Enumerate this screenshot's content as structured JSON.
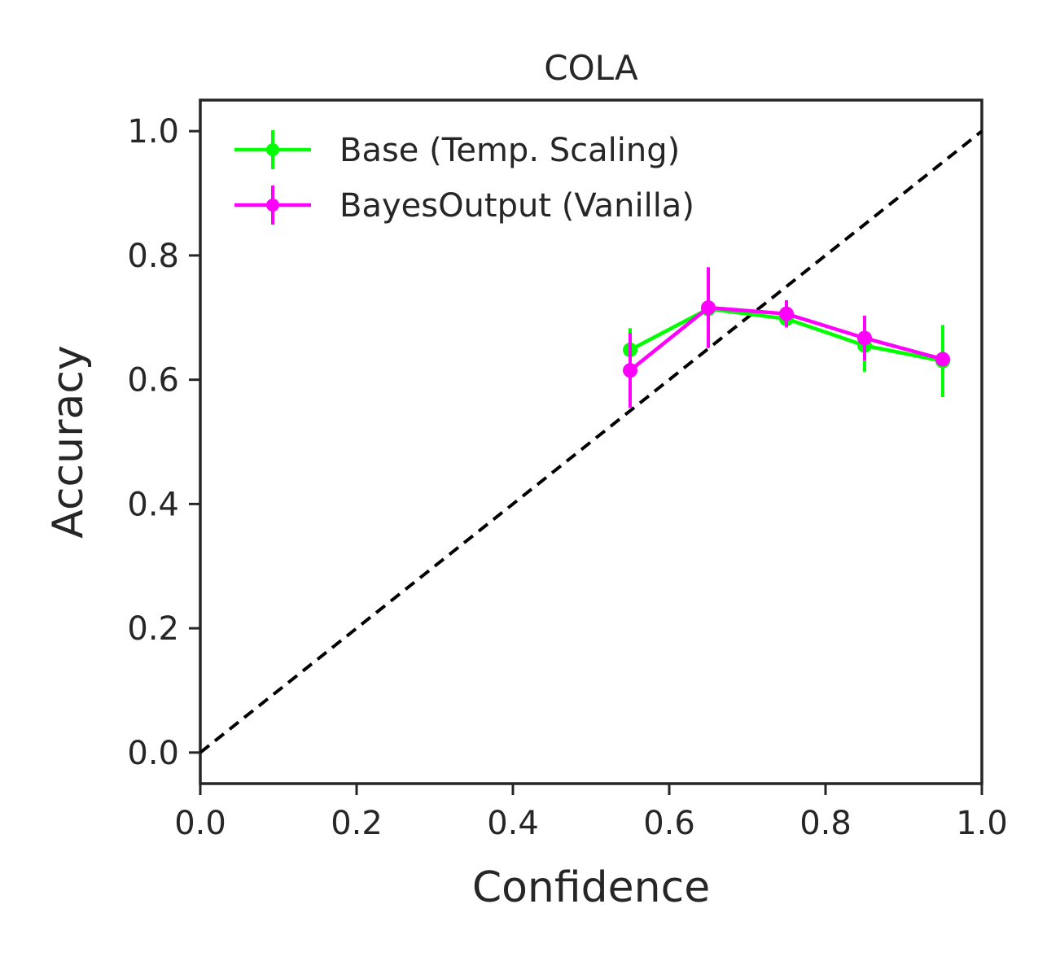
{
  "chart_data": {
    "type": "line",
    "title": "COLA",
    "xlabel": "Confidence",
    "ylabel": "Accuracy",
    "xlim": [
      0.0,
      1.0
    ],
    "ylim": [
      -0.05,
      1.05
    ],
    "xticks": [
      0.0,
      0.2,
      0.4,
      0.6,
      0.8,
      1.0
    ],
    "xtick_labels": [
      "0.0",
      "0.2",
      "0.4",
      "0.6",
      "0.8",
      "1.0"
    ],
    "yticks": [
      0.0,
      0.2,
      0.4,
      0.6,
      0.8,
      1.0
    ],
    "ytick_labels": [
      "0.0",
      "0.2",
      "0.4",
      "0.6",
      "0.8",
      "1.0"
    ],
    "grid": false,
    "legend_position": "top-left",
    "reference_line": {
      "style": "dashed",
      "color": "#000000",
      "from": [
        0,
        0
      ],
      "to": [
        1,
        1
      ]
    },
    "series": [
      {
        "name": "Base (Temp. Scaling)",
        "color": "#00ff00",
        "x": [
          0.55,
          0.65,
          0.75,
          0.85,
          0.95
        ],
        "y": [
          0.648,
          0.714,
          0.698,
          0.655,
          0.63
        ],
        "err": [
          0.035,
          0.015,
          0.01,
          0.042,
          0.058
        ]
      },
      {
        "name": "BayesOutput (Vanilla)",
        "color": "#ff00ff",
        "x": [
          0.55,
          0.65,
          0.75,
          0.85,
          0.95
        ],
        "y": [
          0.615,
          0.716,
          0.706,
          0.667,
          0.633
        ],
        "err": [
          0.06,
          0.065,
          0.022,
          0.036,
          0.01
        ]
      }
    ]
  }
}
